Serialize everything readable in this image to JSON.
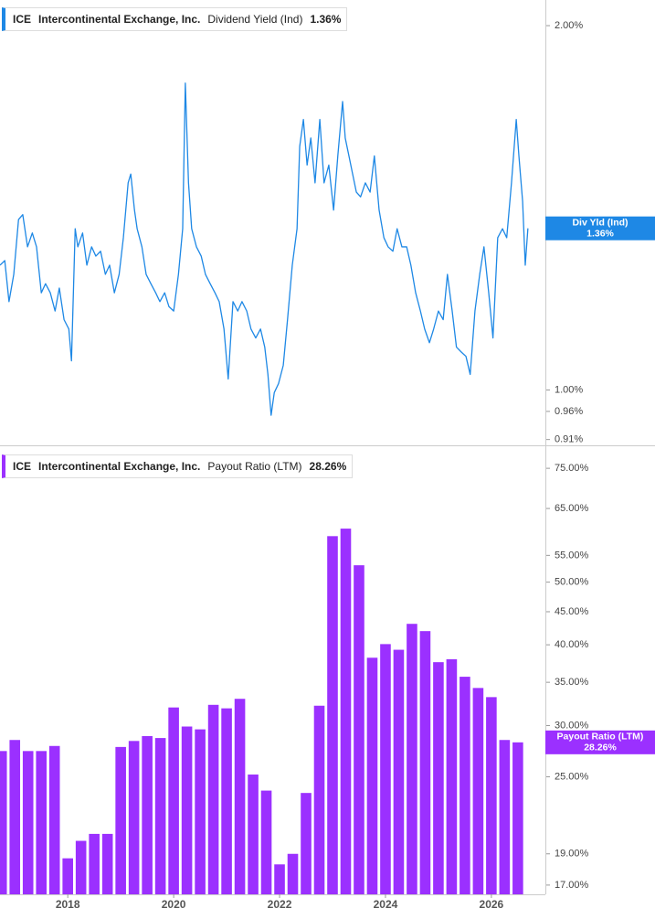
{
  "chart_data": [
    {
      "type": "line",
      "legend": {
        "ticker": "ICE",
        "company": "Intercontinental Exchange, Inc.",
        "metric": "Dividend Yield (Ind)",
        "value_label": "1.36%"
      },
      "badge": {
        "label": "Div Yld (Ind)"
      },
      "series": [
        {
          "name": "Dividend Yield (Ind)",
          "color": "#1e88e5",
          "x": [
            2016.72,
            2016.81,
            2016.89,
            2016.98,
            2017.07,
            2017.15,
            2017.24,
            2017.33,
            2017.41,
            2017.5,
            2017.58,
            2017.67,
            2017.76,
            2017.84,
            2017.93,
            2018.02,
            2018.07,
            2018.14,
            2018.19,
            2018.28,
            2018.36,
            2018.45,
            2018.53,
            2018.62,
            2018.71,
            2018.79,
            2018.88,
            2018.97,
            2019.05,
            2019.14,
            2019.19,
            2019.26,
            2019.31,
            2019.4,
            2019.48,
            2019.57,
            2019.66,
            2019.74,
            2019.83,
            2019.91,
            2020.0,
            2020.09,
            2020.17,
            2020.22,
            2020.28,
            2020.34,
            2020.43,
            2020.52,
            2020.6,
            2020.69,
            2020.78,
            2020.86,
            2020.95,
            2021.03,
            2021.12,
            2021.21,
            2021.29,
            2021.38,
            2021.46,
            2021.55,
            2021.64,
            2021.72,
            2021.78,
            2021.84,
            2021.9,
            2021.98,
            2022.07,
            2022.15,
            2022.24,
            2022.33,
            2022.38,
            2022.45,
            2022.52,
            2022.59,
            2022.67,
            2022.76,
            2022.84,
            2022.93,
            2023.02,
            2023.1,
            2023.19,
            2023.24,
            2023.31,
            2023.38,
            2023.45,
            2023.53,
            2023.62,
            2023.71,
            2023.79,
            2023.88,
            2023.97,
            2024.05,
            2024.14,
            2024.22,
            2024.31,
            2024.4,
            2024.48,
            2024.57,
            2024.66,
            2024.74,
            2024.83,
            2024.91,
            2025.0,
            2025.09,
            2025.17,
            2025.26,
            2025.34,
            2025.43,
            2025.52,
            2025.6,
            2025.69,
            2025.78,
            2025.86,
            2025.95,
            2026.03,
            2026.12,
            2026.21,
            2026.29,
            2026.38,
            2026.47,
            2026.52,
            2026.59,
            2026.64,
            2026.69
          ],
          "values": [
            1.268,
            1.279,
            1.183,
            1.246,
            1.383,
            1.396,
            1.313,
            1.348,
            1.313,
            1.203,
            1.224,
            1.203,
            1.162,
            1.214,
            1.143,
            1.123,
            1.057,
            1.359,
            1.313,
            1.348,
            1.268,
            1.313,
            1.29,
            1.302,
            1.246,
            1.268,
            1.203,
            1.246,
            1.336,
            1.483,
            1.508,
            1.408,
            1.359,
            1.313,
            1.246,
            1.224,
            1.203,
            1.183,
            1.203,
            1.172,
            1.162,
            1.246,
            1.359,
            1.793,
            1.483,
            1.359,
            1.313,
            1.29,
            1.246,
            1.224,
            1.203,
            1.183,
            1.123,
            1.021,
            1.183,
            1.162,
            1.183,
            1.162,
            1.123,
            1.104,
            1.123,
            1.085,
            1.03,
            0.953,
            0.995,
            1.012,
            1.048,
            1.143,
            1.268,
            1.359,
            1.589,
            1.673,
            1.534,
            1.615,
            1.483,
            1.673,
            1.483,
            1.534,
            1.408,
            1.561,
            1.731,
            1.615,
            1.561,
            1.508,
            1.457,
            1.444,
            1.483,
            1.457,
            1.561,
            1.408,
            1.336,
            1.313,
            1.302,
            1.359,
            1.313,
            1.313,
            1.268,
            1.203,
            1.162,
            1.123,
            1.094,
            1.123,
            1.162,
            1.143,
            1.246,
            1.162,
            1.085,
            1.075,
            1.066,
            1.03,
            1.162,
            1.246,
            1.313,
            1.203,
            1.104,
            1.336,
            1.359,
            1.336,
            1.483,
            1.673,
            1.561,
            1.432,
            1.268,
            1.36
          ]
        }
      ],
      "xlim": [
        2016.72,
        2027.02
      ],
      "ylim": [
        0.9,
        2.1
      ],
      "yticks": [
        {
          "value": 2,
          "label": "2.00%"
        },
        {
          "value": 1,
          "label": "1.00%"
        },
        {
          "value": 0.96,
          "label": "0.96%"
        },
        {
          "value": 0.91,
          "label": "0.91%"
        }
      ],
      "log_scale": true,
      "grid": false
    },
    {
      "type": "bar",
      "legend": {
        "ticker": "ICE",
        "company": "Intercontinental Exchange, Inc.",
        "metric": "Payout Ratio (LTM)",
        "value_label": "28.26%"
      },
      "badge": {
        "label": "Payout Ratio (LTM)"
      },
      "series": [
        {
          "name": "Payout Ratio (LTM)",
          "color": "#9b30ff",
          "x": [
            2016.75,
            2017.0,
            2017.25,
            2017.5,
            2017.75,
            2018.0,
            2018.25,
            2018.5,
            2018.75,
            2019.0,
            2019.25,
            2019.5,
            2019.75,
            2020.0,
            2020.25,
            2020.5,
            2020.75,
            2021.0,
            2021.25,
            2021.5,
            2021.75,
            2022.0,
            2022.25,
            2022.5,
            2022.75,
            2023.0,
            2023.25,
            2023.5,
            2023.75,
            2024.0,
            2024.25,
            2024.5,
            2024.75,
            2025.0,
            2025.25,
            2025.5,
            2025.75,
            2026.0,
            2026.25,
            2026.5
          ],
          "values": [
            27.4,
            28.5,
            27.4,
            27.4,
            27.9,
            18.7,
            19.9,
            20.4,
            20.4,
            27.8,
            28.4,
            28.9,
            28.7,
            32.0,
            29.9,
            29.6,
            32.3,
            31.9,
            33.0,
            25.2,
            23.8,
            18.3,
            19.0,
            23.6,
            32.2,
            58.9,
            60.5,
            53.1,
            38.2,
            40.1,
            39.3,
            43.1,
            42.0,
            37.6,
            38.0,
            35.7,
            34.3,
            33.2,
            28.5,
            28.26
          ]
        }
      ],
      "xlim": [
        2016.72,
        2027.02
      ],
      "xticks": [
        2018,
        2020,
        2022,
        2024,
        2026
      ],
      "ylim": [
        16.45,
        80.6
      ],
      "yticks": [
        {
          "value": 75,
          "label": "75.00%"
        },
        {
          "value": 65,
          "label": "65.00%"
        },
        {
          "value": 55,
          "label": "55.00%"
        },
        {
          "value": 50,
          "label": "50.00%"
        },
        {
          "value": 45,
          "label": "45.00%"
        },
        {
          "value": 40,
          "label": "40.00%"
        },
        {
          "value": 35,
          "label": "35.00%"
        },
        {
          "value": 30,
          "label": "30.00%"
        },
        {
          "value": 25,
          "label": "25.00%"
        },
        {
          "value": 19,
          "label": "19.00%"
        },
        {
          "value": 17,
          "label": "17.00%"
        }
      ],
      "log_scale": true,
      "grid": false
    }
  ]
}
